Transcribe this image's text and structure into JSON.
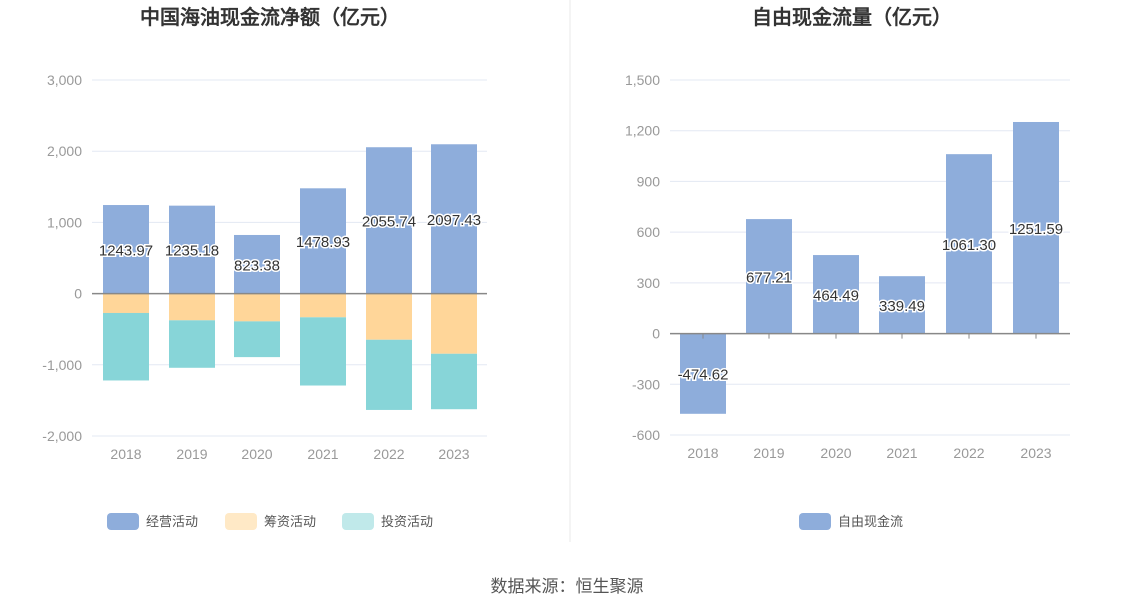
{
  "source": "数据来源：恒生聚源",
  "chart_data": [
    {
      "type": "bar",
      "stacked": true,
      "title": "中国海油现金流净额（亿元）",
      "categories": [
        "2018",
        "2019",
        "2020",
        "2021",
        "2022",
        "2023"
      ],
      "ylim": [
        -2000,
        3000
      ],
      "yticks": [
        "3,000",
        "2,000",
        "1,000",
        "0",
        "-1,000",
        "-2,000"
      ],
      "ytick_values": [
        3000,
        2000,
        1000,
        0,
        -1000,
        -2000
      ],
      "grid": true,
      "legend_position": "bottom",
      "series": [
        {
          "name": "经营活动",
          "color": "#8eaddb",
          "values": [
            1243.97,
            1235.18,
            823.38,
            1478.93,
            2055.74,
            2097.43
          ],
          "labels": [
            "1243.97",
            "1235.18",
            "823.38",
            "1478.93",
            "2055.74",
            "2097.43"
          ]
        },
        {
          "name": "筹资活动",
          "color": "#ffd699",
          "legend_color": "#ffe9c6",
          "values": [
            -272,
            -375,
            -390,
            -333,
            -648,
            -845
          ]
        },
        {
          "name": "投资活动",
          "color": "#87d5d8",
          "legend_color": "#c0e9ea",
          "values": [
            -948,
            -667,
            -502,
            -958,
            -986,
            -779
          ]
        }
      ]
    },
    {
      "type": "bar",
      "title": "自由现金流量（亿元）",
      "categories": [
        "2018",
        "2019",
        "2020",
        "2021",
        "2022",
        "2023"
      ],
      "ylim": [
        -600,
        1500
      ],
      "yticks": [
        "1,500",
        "1,200",
        "900",
        "600",
        "300",
        "0",
        "-300",
        "-600"
      ],
      "ytick_values": [
        1500,
        1200,
        900,
        600,
        300,
        0,
        -300,
        -600
      ],
      "grid": true,
      "legend_position": "bottom",
      "series": [
        {
          "name": "自由现金流",
          "color": "#8eaddb",
          "values": [
            -474.62,
            677.21,
            464.49,
            339.49,
            1061.3,
            1251.59
          ],
          "labels": [
            "-474.62",
            "677.21",
            "464.49",
            "339.49",
            "1061.30",
            "1251.59"
          ]
        }
      ]
    }
  ]
}
